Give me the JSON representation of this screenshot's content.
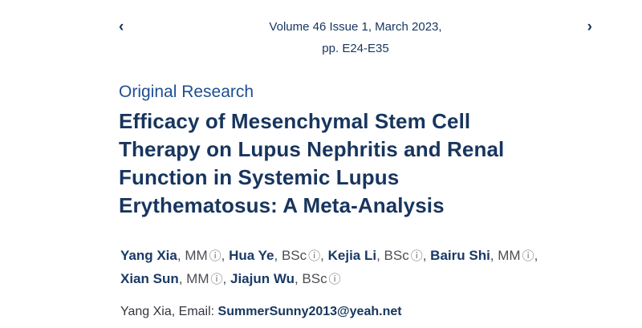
{
  "issue_nav": {
    "prev_icon_glyph": "‹",
    "next_icon_glyph": "›",
    "line1": "Volume 46 Issue 1, March 2023,",
    "line2": "pp. E24-E35"
  },
  "article": {
    "section_label": "Original Research",
    "title_lines": [
      "Efficacy of Mesenchymal Stem Cell",
      "Therapy on Lupus Nephritis and Renal",
      "Function in Systemic Lupus",
      "Erythematosus: A Meta-Analysis"
    ],
    "info_icon_glyph": "ⓘ",
    "authors": [
      {
        "name": "Yang Xia",
        "degree": ", MM",
        "sep": ", "
      },
      {
        "name": "Hua Ye",
        "degree": ", BSc",
        "sep": ", "
      },
      {
        "name": "Kejia Li",
        "degree": ", BSc",
        "sep": ", "
      },
      {
        "name": "Bairu Shi",
        "degree": ", MM",
        "sep": ", "
      },
      {
        "name": "Xian Sun",
        "degree": ", MM",
        "sep": ", "
      },
      {
        "name": "Jiajun Wu",
        "degree": ", BSc",
        "sep": ""
      }
    ],
    "contact": {
      "label": "Yang Xia, Email: ",
      "email": "SummerSunny2013@yeah.net"
    }
  },
  "colors": {
    "navy": "#17355e",
    "section_blue": "#1d4f94",
    "degree_gray": "#4c4d55",
    "icon_gray": "#6d6e76",
    "background": "#ffffff"
  }
}
